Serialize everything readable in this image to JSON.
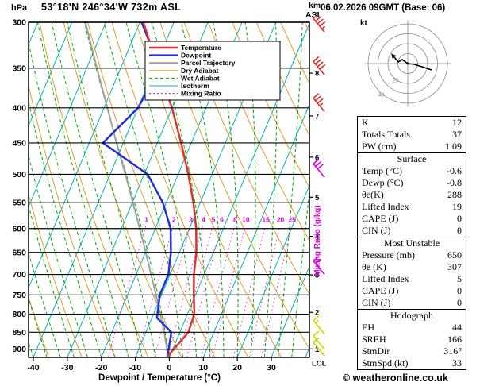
{
  "header": {
    "pressure_unit": "hPa",
    "title": "53°18'N 246°34'W 732m ASL",
    "alt_unit_line1": "km",
    "alt_unit_line2": "ASL"
  },
  "date_title": "06.02.2026 09GMT (Base: 06)",
  "xaxis_label": "Dewpoint / Temperature (°C)",
  "mixing_axis_label": "Mixing Ratio (g/kg)",
  "footer": "© weatheronline.co.uk",
  "legend": [
    {
      "label": "Temperature",
      "color": "#e03030",
      "width": 2.5,
      "dash": ""
    },
    {
      "label": "Dewpoint",
      "color": "#2030e0",
      "width": 2.5,
      "dash": ""
    },
    {
      "label": "Parcel Trajectory",
      "color": "#a0a0a0",
      "width": 2,
      "dash": ""
    },
    {
      "label": "Dry Adiabat",
      "color": "#e09c28",
      "width": 1,
      "dash": ""
    },
    {
      "label": "Wet Adiabat",
      "color": "#00a800",
      "width": 1,
      "dash": "4,3"
    },
    {
      "label": "Isotherm",
      "color": "#00b4b4",
      "width": 1,
      "dash": ""
    },
    {
      "label": "Mixing Ratio",
      "color": "#d800d8",
      "width": 1,
      "dash": "2,3"
    }
  ],
  "chart_data": {
    "type": "skewt",
    "p_range": [
      300,
      925
    ],
    "t_axis_range": [
      -40,
      30
    ],
    "pressure_ticks": [
      300,
      350,
      400,
      450,
      500,
      550,
      600,
      650,
      700,
      750,
      800,
      850,
      900
    ],
    "temp_ticks": [
      -40,
      -30,
      -20,
      -10,
      0,
      10,
      20,
      30
    ],
    "km_ticks": [
      {
        "km": 8,
        "p": 356
      },
      {
        "km": 7,
        "p": 411
      },
      {
        "km": 6,
        "p": 472
      },
      {
        "km": 5,
        "p": 540
      },
      {
        "km": 4,
        "p": 616
      },
      {
        "km": 3,
        "p": 701
      },
      {
        "km": 2,
        "p": 795
      },
      {
        "km": 1,
        "p": 899
      }
    ],
    "lcl": {
      "label": "LCL",
      "p": 921
    },
    "mixing_ratio": {
      "values": [
        1,
        2,
        3,
        4,
        5,
        6,
        8,
        10,
        15,
        20,
        25
      ],
      "label_p": 590
    },
    "isotherms": {
      "min": -120,
      "max": 40,
      "step": 10
    },
    "dry_adiabats": {
      "min_theta_k": 243,
      "max_theta_k": 443,
      "step": 10
    },
    "wet_adiabats": {
      "min_t": -52,
      "max_t": 36,
      "step": 4
    },
    "series": [
      {
        "name": "parcel",
        "color": "#a0a0a0",
        "width": 2,
        "points": [
          [
            920,
            -0.6
          ],
          [
            850,
            -4.6
          ],
          [
            800,
            -8
          ],
          [
            750,
            -11.6
          ],
          [
            700,
            -15.6
          ],
          [
            650,
            -19.9
          ],
          [
            600,
            -24.6
          ],
          [
            550,
            -29.8
          ],
          [
            500,
            -35.5
          ],
          [
            450,
            -42
          ],
          [
            400,
            -49
          ],
          [
            350,
            -57
          ],
          [
            300,
            -66
          ]
        ]
      },
      {
        "name": "dewpoint",
        "color": "#2030e0",
        "width": 2.5,
        "points": [
          [
            920,
            -0.8
          ],
          [
            900,
            -1.2
          ],
          [
            850,
            -2.5
          ],
          [
            810,
            -8.5
          ],
          [
            750,
            -10.5
          ],
          [
            700,
            -10.5
          ],
          [
            650,
            -12.5
          ],
          [
            600,
            -15.5
          ],
          [
            550,
            -21
          ],
          [
            500,
            -29
          ],
          [
            450,
            -46
          ],
          [
            400,
            -40
          ],
          [
            350,
            -38.5
          ],
          [
            300,
            -49.5
          ]
        ]
      },
      {
        "name": "temperature",
        "color": "#e03030",
        "width": 2.5,
        "points": [
          [
            920,
            -0.6
          ],
          [
            900,
            0.3
          ],
          [
            850,
            2.5
          ],
          [
            800,
            2.0
          ],
          [
            750,
            -0.5
          ],
          [
            700,
            -3
          ],
          [
            650,
            -5
          ],
          [
            600,
            -8
          ],
          [
            550,
            -12
          ],
          [
            500,
            -17
          ],
          [
            450,
            -23
          ],
          [
            400,
            -30
          ],
          [
            350,
            -39
          ],
          [
            300,
            -49
          ]
        ]
      }
    ],
    "wind_barbs": [
      {
        "p": 310,
        "spd": 45,
        "color": "#e03030"
      },
      {
        "p": 358,
        "spd": 40,
        "color": "#e03030"
      },
      {
        "p": 405,
        "spd": 35,
        "color": "#e03030"
      },
      {
        "p": 505,
        "spd": 30,
        "color": "#e000e0"
      },
      {
        "p": 700,
        "spd": 20,
        "color": "#e000e0"
      },
      {
        "p": 855,
        "spd": 15,
        "color": "#d6d600"
      },
      {
        "p": 900,
        "spd": 10,
        "color": "#d6d600"
      },
      {
        "p": 920,
        "spd": 10,
        "color": "#b8d400"
      }
    ]
  },
  "hodograph": {
    "unit": "kt",
    "rings": [
      10,
      20,
      30,
      40
    ],
    "ring_labels": [
      {
        "value": 20
      },
      {
        "value": 40
      }
    ],
    "trace": [
      [
        96,
        68
      ],
      [
        84,
        64
      ],
      [
        74,
        61
      ],
      [
        66,
        60
      ]
    ],
    "arrow_branch": [
      [
        66,
        60
      ],
      [
        59,
        55
      ],
      [
        54,
        58
      ],
      [
        49,
        52
      ]
    ]
  },
  "tables": [
    {
      "rows": [
        {
          "label": "K",
          "value": "12"
        },
        {
          "label": "Totals Totals",
          "value": "37"
        },
        {
          "label": "PW (cm)",
          "value": "1.09"
        }
      ]
    },
    {
      "title": "Surface",
      "rows": [
        {
          "label": "Temp (°C)",
          "value": "-0.6"
        },
        {
          "label": "Dewp (°C)",
          "value": "-0.8"
        },
        {
          "label": "θe(K)",
          "value": "288"
        },
        {
          "label": "Lifted Index",
          "value": "19"
        },
        {
          "label": "CAPE (J)",
          "value": "0"
        },
        {
          "label": "CIN (J)",
          "value": "0"
        }
      ]
    },
    {
      "title": "Most Unstable",
      "rows": [
        {
          "label": "Pressure (mb)",
          "value": "650"
        },
        {
          "label": "θe (K)",
          "value": "307"
        },
        {
          "label": "Lifted Index",
          "value": "5"
        },
        {
          "label": "CAPE (J)",
          "value": "0"
        },
        {
          "label": "CIN (J)",
          "value": "0"
        }
      ]
    },
    {
      "title": "Hodograph",
      "rows": [
        {
          "label": "EH",
          "value": "44"
        },
        {
          "label": "SREH",
          "value": "166"
        },
        {
          "label": "StmDir",
          "value": "316°"
        },
        {
          "label": "StmSpd (kt)",
          "value": "33"
        }
      ]
    }
  ]
}
